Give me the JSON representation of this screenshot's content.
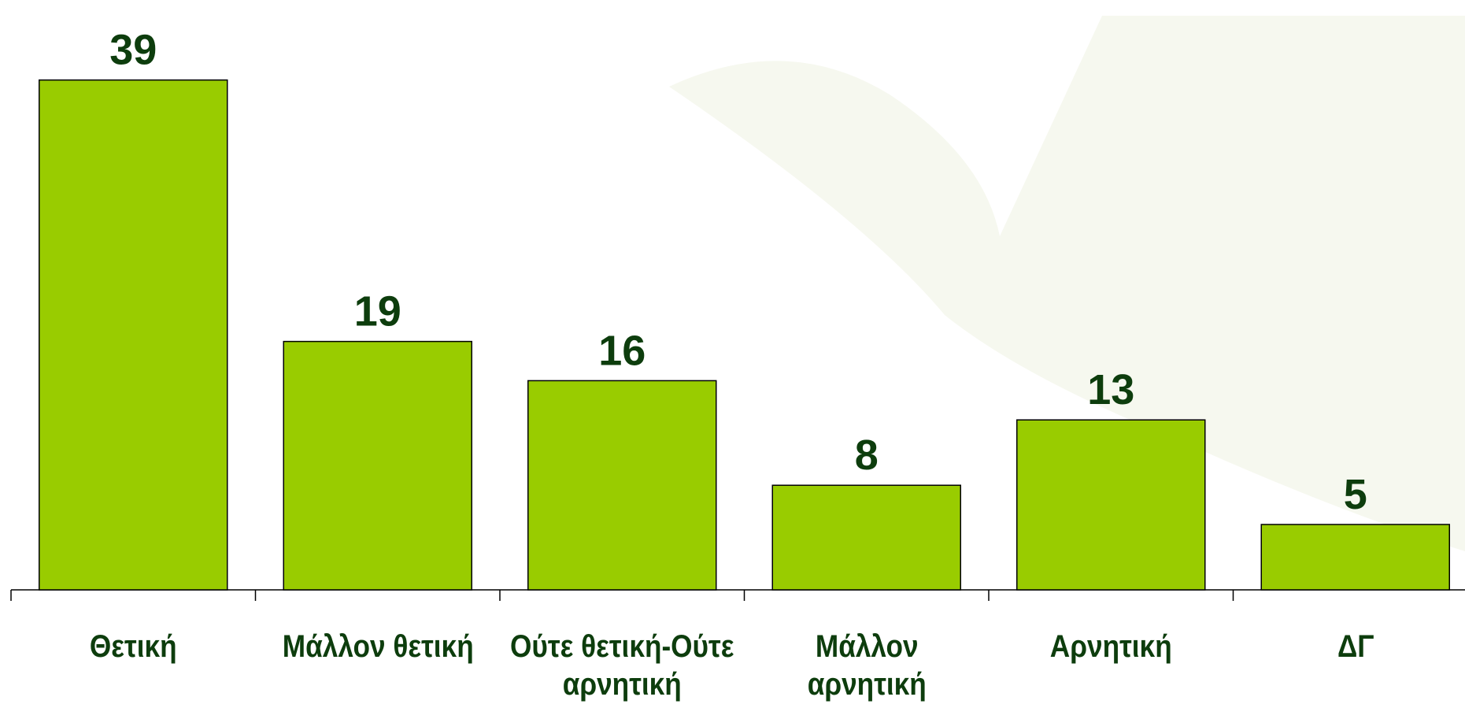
{
  "chart_data": {
    "type": "bar",
    "categories": [
      "Θετική",
      "Μάλλον θετική",
      "Ούτε θετική-Ούτε αρνητική",
      "Μάλλον αρνητική",
      "Αρνητική",
      "ΔΓ"
    ],
    "values": [
      39,
      19,
      16,
      8,
      13,
      5
    ],
    "color": "#99cc00"
  }
}
